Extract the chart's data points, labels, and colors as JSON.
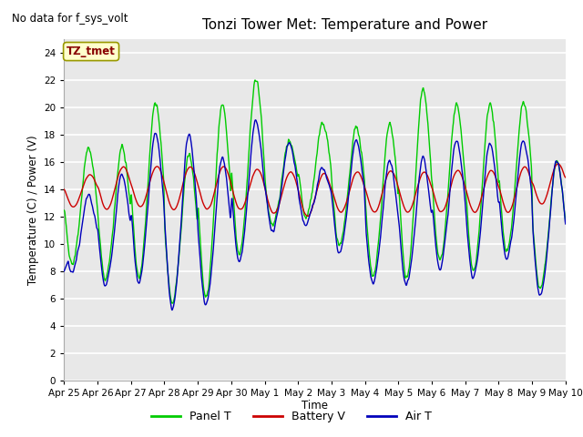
{
  "title": "Tonzi Tower Met: Temperature and Power",
  "top_left_text": "No data for f_sys_volt",
  "ylabel": "Temperature (C) / Power (V)",
  "xlabel": "Time",
  "legend_label": "TZ_tmet",
  "series_labels": [
    "Panel T",
    "Battery V",
    "Air T"
  ],
  "series_colors": [
    "#00cc00",
    "#cc0000",
    "#0000bb"
  ],
  "x_tick_labels": [
    "Apr 25",
    "Apr 26",
    "Apr 27",
    "Apr 28",
    "Apr 29",
    "Apr 30",
    "May 1",
    "May 2",
    "May 3",
    "May 4",
    "May 5",
    "May 6",
    "May 7",
    "May 8",
    "May 9",
    "May 10"
  ],
  "ylim": [
    0,
    25
  ],
  "yticks": [
    0,
    2,
    4,
    6,
    8,
    10,
    12,
    14,
    16,
    18,
    20,
    22,
    24
  ],
  "plot_bg_color": "#e8e8e8",
  "grid_color": "#ffffff",
  "fig_bg_color": "#ffffff",
  "n_days": 15,
  "pts_per_day": 96,
  "linewidth": 1.0
}
